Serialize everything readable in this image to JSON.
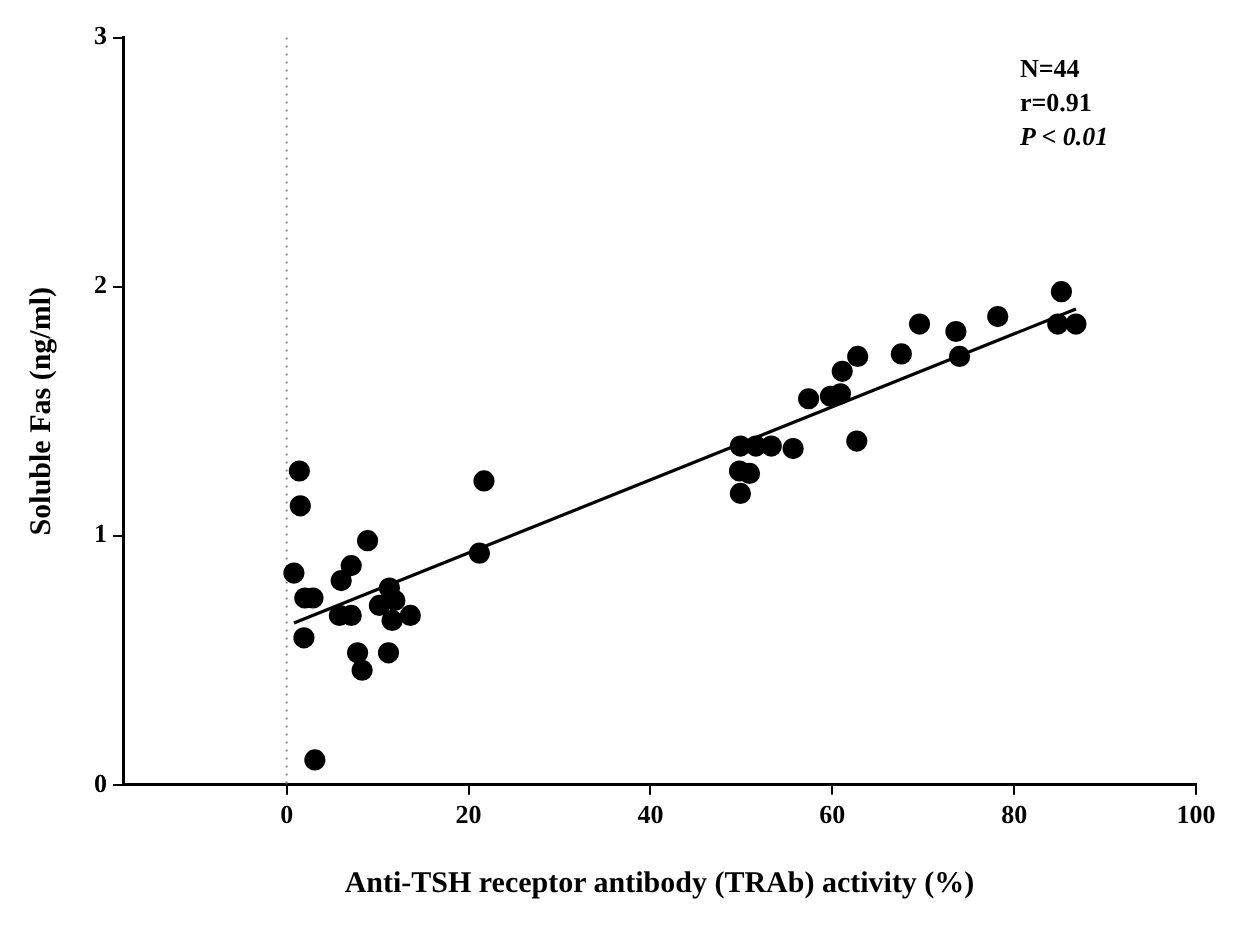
{
  "chart_data": {
    "type": "scatter",
    "xlabel": "Anti-TSH receptor antibody (TRAb) activity (%)",
    "ylabel": "Soluble Fas (ng/ml)",
    "xlim": [
      -18,
      100
    ],
    "xticks": [
      0,
      20,
      40,
      60,
      80,
      100
    ],
    "ylim": [
      0,
      3
    ],
    "yticks": [
      0,
      1,
      2,
      3
    ],
    "legend": false,
    "marker": "circle",
    "annotations": [
      "N=44",
      "r=0.91",
      "P < 0.01"
    ],
    "ref_lines": [
      {
        "axis": "x",
        "value": 0,
        "color": "#888888",
        "line_style": "dotted"
      }
    ],
    "series": [
      {
        "type": "scatter",
        "color": "#000000",
        "x": [
          0.8,
          1.4,
          1.5,
          1.9,
          2.0,
          2.9,
          3.1,
          6.0,
          5.8,
          7.1,
          7.1,
          7.8,
          8.3,
          8.9,
          10.2,
          11.3,
          11.9,
          11.6,
          11.2,
          13.6,
          21.2,
          21.7,
          49.9,
          49.8,
          49.9,
          50.9,
          51.6,
          53.3,
          55.7,
          57.4,
          59.8,
          60.9,
          61.1,
          62.8,
          62.7,
          67.6,
          69.6,
          73.6,
          74.0,
          78.2,
          85.2,
          84.8,
          86.8
        ],
        "values": [
          0.85,
          1.26,
          1.12,
          0.59,
          0.75,
          0.75,
          0.1,
          0.82,
          0.68,
          0.88,
          0.68,
          0.53,
          0.46,
          0.98,
          0.72,
          0.79,
          0.74,
          0.66,
          0.53,
          0.68,
          0.93,
          1.22,
          1.36,
          1.26,
          1.17,
          1.25,
          1.36,
          1.36,
          1.35,
          1.55,
          1.56,
          1.57,
          1.66,
          1.72,
          1.38,
          1.73,
          1.85,
          1.82,
          1.72,
          1.88,
          1.98,
          1.85,
          1.85
        ]
      },
      {
        "type": "line",
        "color": "#000000",
        "marker": "none",
        "x": [
          0.8,
          86.8
        ],
        "values": [
          0.65,
          1.91
        ]
      }
    ]
  }
}
